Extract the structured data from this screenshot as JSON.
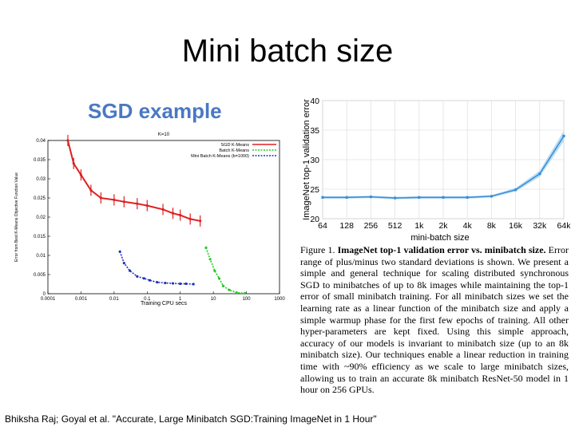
{
  "slide": {
    "title": "Mini batch size",
    "footer": "Bhiksha Raj; Goyal et al. \"Accurate, Large Minibatch SGD:Training ImageNet in 1 Hour\""
  },
  "left_panel": {
    "heading": "SGD example",
    "heading_color": "#4a78c4"
  },
  "caption": {
    "figure_label": "Figure 1.",
    "bold_title": "ImageNet top-1 validation error vs. minibatch size.",
    "text": "Error range of plus/minus two standard deviations is shown. We present a simple and general technique for scaling distributed synchronous SGD to minibatches of up to 8k images while maintaining the top-1 error of small minibatch training. For all minibatch sizes we set the learning rate as a linear function of the minibatch size and apply a simple warmup phase for the first few epochs of training. All other hyper-parameters are kept fixed. Using this simple approach, accuracy of our models is invariant to minibatch size (up to an 8k minibatch size). Our techniques enable a linear reduction in training time with ~90% efficiency as we scale to large minibatch sizes, allowing us to train an accurate 8k minibatch ResNet-50 model in 1 hour on 256 GPUs."
  },
  "chart_data": [
    {
      "type": "line",
      "title": "K=10",
      "xlabel": "Training CPU secs",
      "ylabel": "Error from Best K-Means Objective Function Value",
      "xscale": "log",
      "xlim": [
        0.0001,
        1000
      ],
      "ylim": [
        0,
        0.04
      ],
      "x_ticks": [
        "0.0001",
        "0.001",
        "0.01",
        "0.1",
        "1",
        "10",
        "100",
        "1000"
      ],
      "y_ticks": [
        "0",
        "0.005",
        "0.01",
        "0.015",
        "0.02",
        "0.025",
        "0.03",
        "0.035",
        "0.04"
      ],
      "grid": false,
      "legend_position": "top-right",
      "series": [
        {
          "name": "SGD K-Means",
          "color": "#dd2222",
          "x": [
            0.0004,
            0.0006,
            0.001,
            0.002,
            0.004,
            0.01,
            0.02,
            0.05,
            0.1,
            0.3,
            0.6,
            1,
            2,
            4
          ],
          "y": [
            0.041,
            0.034,
            0.031,
            0.027,
            0.025,
            0.0245,
            0.024,
            0.0235,
            0.023,
            0.022,
            0.021,
            0.0205,
            0.0195,
            0.019
          ]
        },
        {
          "name": "Batch K-Means",
          "color": "#22cc22",
          "x": [
            6,
            8,
            11,
            15,
            20,
            30,
            50,
            90
          ],
          "y": [
            0.012,
            0.009,
            0.006,
            0.004,
            0.002,
            0.001,
            0.0003,
            0.0001
          ]
        },
        {
          "name": "Mini Batch K-Means (b=1000)",
          "color": "#2233bb",
          "x": [
            0.015,
            0.02,
            0.03,
            0.05,
            0.08,
            0.12,
            0.2,
            0.35,
            0.6,
            1,
            1.5,
            2.5
          ],
          "y": [
            0.011,
            0.008,
            0.006,
            0.0045,
            0.004,
            0.0035,
            0.003,
            0.0028,
            0.0027,
            0.0026,
            0.0026,
            0.0025
          ]
        }
      ]
    },
    {
      "type": "line",
      "title": "",
      "xlabel": "mini-batch size",
      "ylabel": "ImageNet top-1 validation error",
      "categories": [
        "64",
        "128",
        "256",
        "512",
        "1k",
        "2k",
        "4k",
        "8k",
        "16k",
        "32k",
        "64k"
      ],
      "y_ticks": [
        "20",
        "25",
        "30",
        "35",
        "40"
      ],
      "ylim": [
        20,
        40
      ],
      "grid": true,
      "line_color": "#3b8fd8",
      "band_color": "#b9dcf5",
      "series": [
        {
          "values": [
            23.6,
            23.6,
            23.7,
            23.5,
            23.6,
            23.6,
            23.6,
            23.8,
            24.9,
            27.6,
            34.0
          ],
          "error": [
            0.2,
            0.2,
            0.2,
            0.2,
            0.2,
            0.2,
            0.2,
            0.2,
            0.3,
            0.5,
            0.9
          ]
        }
      ]
    }
  ]
}
